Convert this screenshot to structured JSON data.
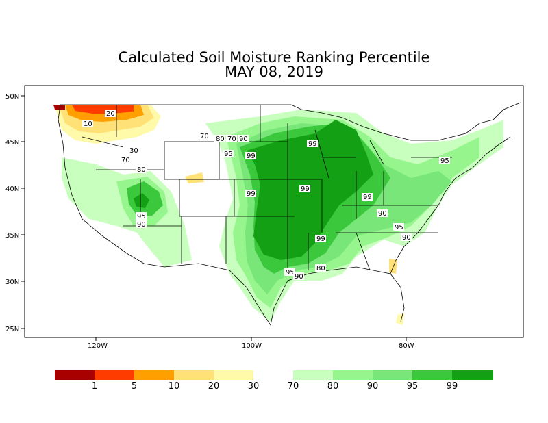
{
  "title": "Calculated Soil Moisture Ranking Percentile",
  "date": "MAY 08, 2019",
  "lat_labels": [
    "50N",
    "45N",
    "40N",
    "35N",
    "30N",
    "25N"
  ],
  "lon_labels": [
    "120W",
    "100W",
    "80W"
  ],
  "contour_labels": [
    "20",
    "10",
    "30",
    "70",
    "80",
    "70",
    "80",
    "70",
    "90",
    "95",
    "99",
    "99",
    "99",
    "99",
    "99",
    "99",
    "95",
    "90",
    "95",
    "90",
    "95",
    "90",
    "95",
    "90",
    "80",
    "90"
  ],
  "legend": {
    "dry": [
      {
        "color": "#a80000",
        "label": "1"
      },
      {
        "color": "#ff3c00",
        "label": "5"
      },
      {
        "color": "#ffa000",
        "label": "10"
      },
      {
        "color": "#ffe178",
        "label": "20"
      },
      {
        "color": "#fffaaa",
        "label": "30"
      }
    ],
    "wet": [
      {
        "color": "#c8ffbe",
        "label": "70"
      },
      {
        "color": "#96f58c",
        "label": "80"
      },
      {
        "color": "#78e678",
        "label": "90"
      },
      {
        "color": "#3cc83c",
        "label": "95"
      },
      {
        "color": "#14a014",
        "label": "99"
      }
    ]
  }
}
